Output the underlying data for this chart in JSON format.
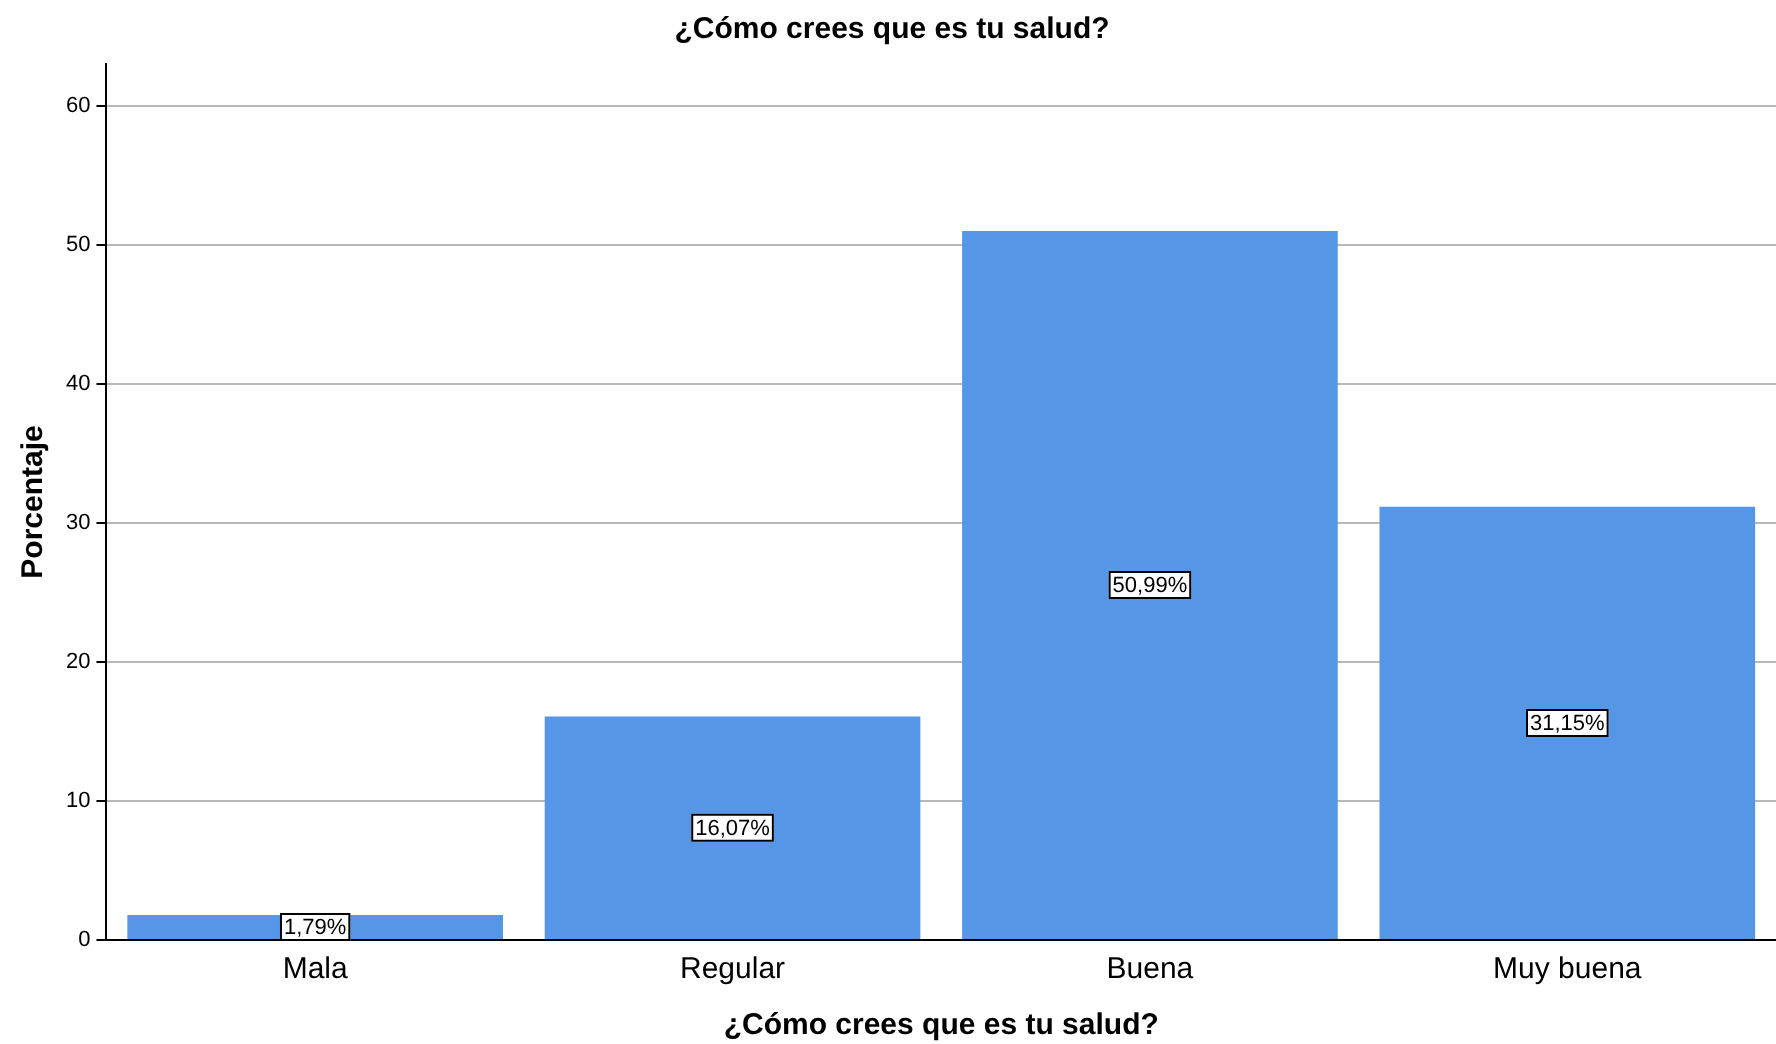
{
  "chart_data": {
    "type": "bar",
    "title": "¿Cómo crees que es tu salud?",
    "xlabel": "¿Cómo crees que es tu salud?",
    "ylabel": "Porcentaje",
    "categories": [
      "Mala",
      "Regular",
      "Buena",
      "Muy buena"
    ],
    "values": [
      1.79,
      16.07,
      50.99,
      31.15
    ],
    "value_labels": [
      "1,79%",
      "16,07%",
      "50,99%",
      "31,15%"
    ],
    "color": "#5596e6",
    "ylim": [
      0,
      63
    ],
    "yticks": [
      0,
      10,
      20,
      30,
      40,
      50,
      60
    ],
    "grid": "y",
    "legend": false
  }
}
